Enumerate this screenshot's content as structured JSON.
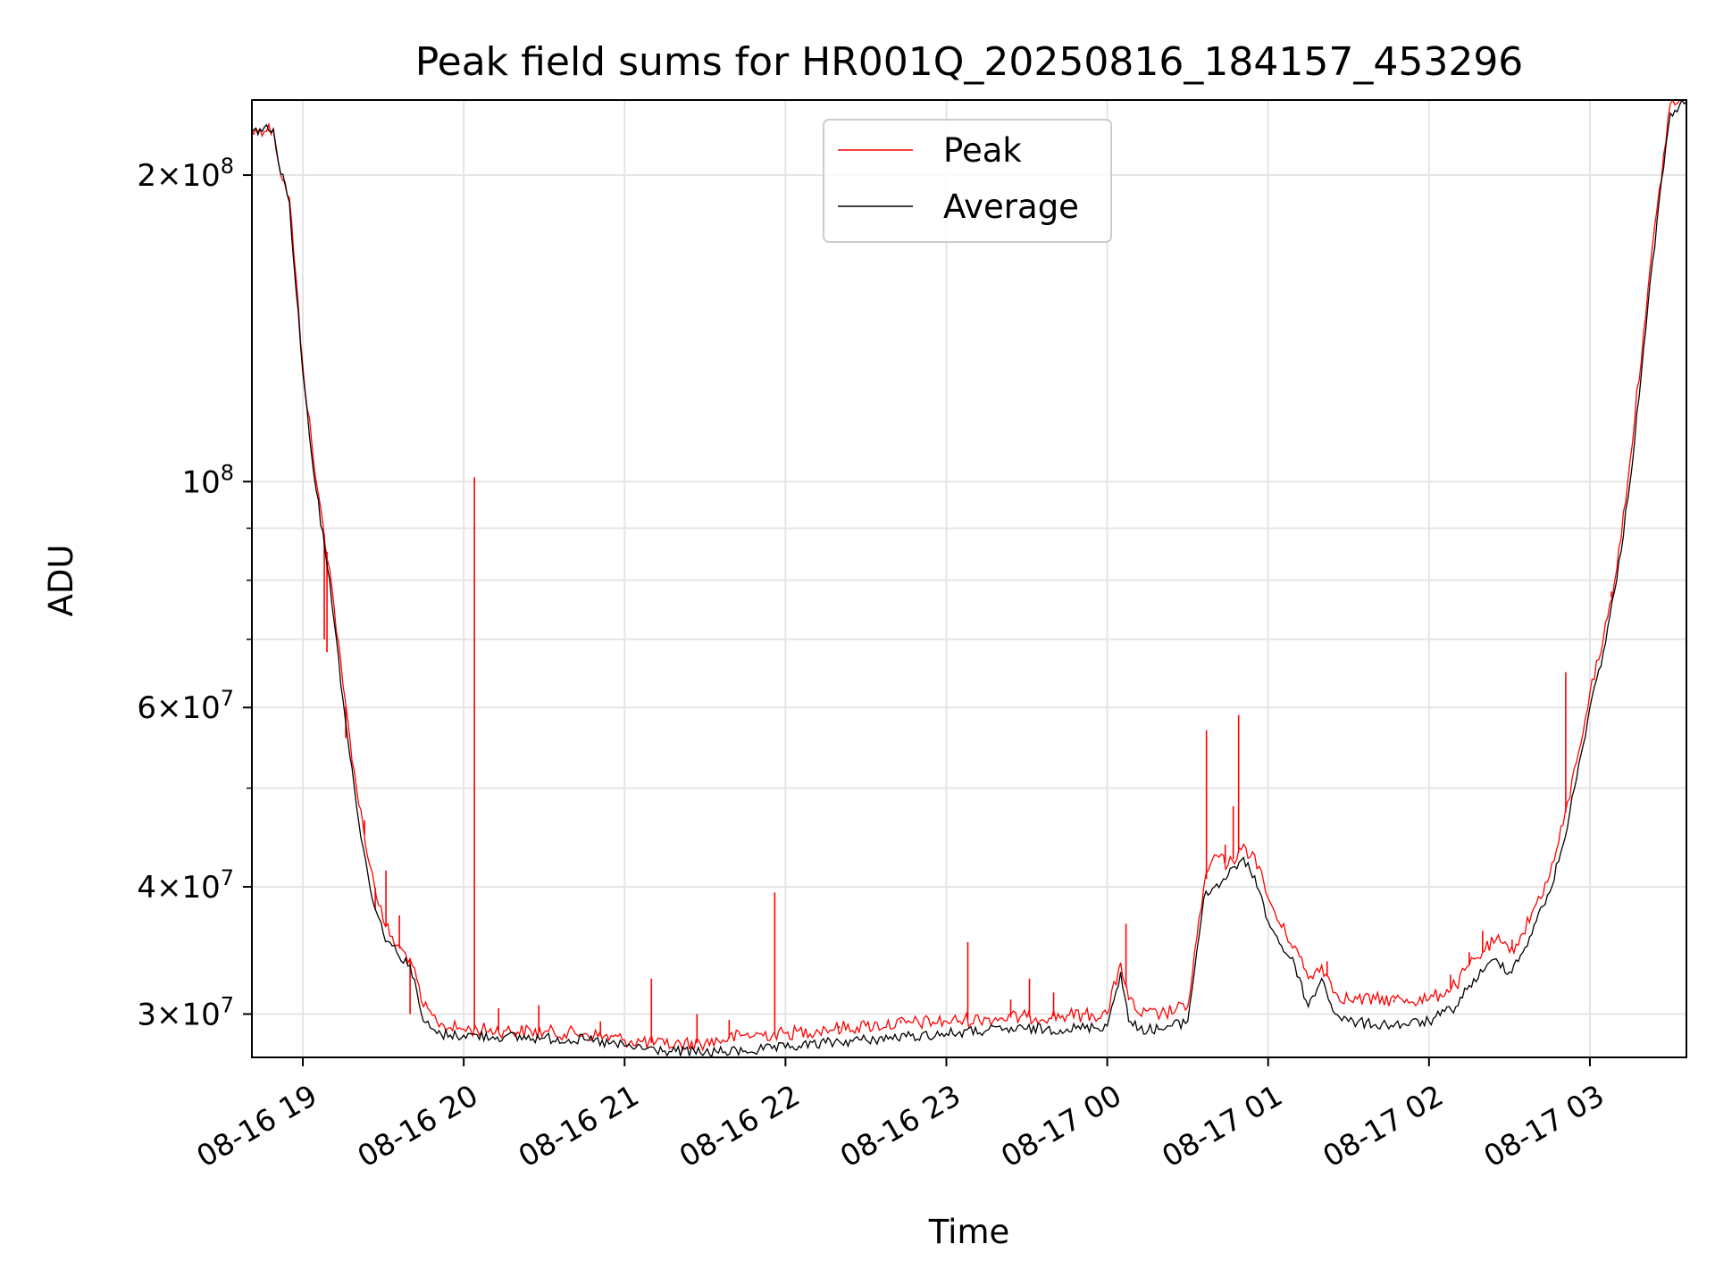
{
  "chart_data": {
    "type": "line",
    "title": "Peak field sums for HR001Q_20250816_184157_453296",
    "xlabel": "Time",
    "ylabel": "ADU",
    "yscale": "log",
    "grid": true,
    "legend": "upper-center",
    "xlim": [
      "2025-08-16 18:41",
      "2025-08-17 03:36"
    ],
    "ylim": [
      27200000,
      237000000
    ],
    "x_ticks": [
      "08-16 19",
      "08-16 20",
      "08-16 21",
      "08-16 22",
      "08-16 23",
      "08-17 00",
      "08-17 01",
      "08-17 02",
      "08-17 03"
    ],
    "y_ticks": [
      {
        "base": "2",
        "exp": "8",
        "value": 200000000
      },
      {
        "base": "",
        "exp": "8",
        "value": 100000000
      },
      {
        "base": "6",
        "exp": "7",
        "value": 60000000
      },
      {
        "base": "4",
        "exp": "7",
        "value": 40000000
      },
      {
        "base": "3",
        "exp": "7",
        "value": 30000000
      }
    ],
    "y_minor_ticks": [
      90000000,
      80000000,
      70000000,
      50000000
    ],
    "series": [
      {
        "name": "Peak",
        "color": "#ff0000",
        "x": [
          "2025-08-16 18:41",
          "2025-08-16 18:44",
          "2025-08-16 18:49",
          "2025-08-16 18:51",
          "2025-08-16 18:55",
          "2025-08-16 19:00",
          "2025-08-16 19:05",
          "2025-08-16 19:10",
          "2025-08-16 19:15",
          "2025-08-16 19:20",
          "2025-08-16 19:25",
          "2025-08-16 19:30",
          "2025-08-16 19:35",
          "2025-08-16 19:40",
          "2025-08-16 19:45",
          "2025-08-16 19:50",
          "2025-08-16 19:55",
          "2025-08-16 20:00",
          "2025-08-16 20:15",
          "2025-08-16 20:30",
          "2025-08-16 20:45",
          "2025-08-16 21:00",
          "2025-08-16 21:15",
          "2025-08-16 21:30",
          "2025-08-16 21:45",
          "2025-08-16 22:00",
          "2025-08-16 22:15",
          "2025-08-16 22:30",
          "2025-08-16 22:45",
          "2025-08-16 23:00",
          "2025-08-16 23:15",
          "2025-08-16 23:30",
          "2025-08-16 23:45",
          "2025-08-17 00:00",
          "2025-08-17 00:05",
          "2025-08-17 00:08",
          "2025-08-17 00:12",
          "2025-08-17 00:20",
          "2025-08-17 00:30",
          "2025-08-17 00:36",
          "2025-08-17 00:40",
          "2025-08-17 00:45",
          "2025-08-17 00:50",
          "2025-08-17 00:55",
          "2025-08-17 01:00",
          "2025-08-17 01:05",
          "2025-08-17 01:10",
          "2025-08-17 01:15",
          "2025-08-17 01:20",
          "2025-08-17 01:25",
          "2025-08-17 01:30",
          "2025-08-17 01:40",
          "2025-08-17 01:50",
          "2025-08-17 02:00",
          "2025-08-17 02:10",
          "2025-08-17 02:15",
          "2025-08-17 02:20",
          "2025-08-17 02:25",
          "2025-08-17 02:30",
          "2025-08-17 02:35",
          "2025-08-17 02:40",
          "2025-08-17 02:45",
          "2025-08-17 02:50",
          "2025-08-17 02:55",
          "2025-08-17 03:00",
          "2025-08-17 03:05",
          "2025-08-17 03:10",
          "2025-08-17 03:15",
          "2025-08-17 03:20",
          "2025-08-17 03:25",
          "2025-08-17 03:30",
          "2025-08-17 03:36"
        ],
        "y": [
          220000000,
          222000000,
          222000000,
          205000000,
          190000000,
          130000000,
          100000000,
          82000000,
          63000000,
          50000000,
          42000000,
          37000000,
          35000000,
          34000000,
          30500000,
          29500000,
          29100000,
          29000000,
          28900000,
          28800000,
          28700000,
          28300000,
          28000000,
          28100000,
          28600000,
          28700000,
          29000000,
          29200000,
          29400000,
          29500000,
          29700000,
          29800000,
          29900000,
          30000000,
          33700000,
          31000000,
          30000000,
          30000000,
          30500000,
          40000000,
          43000000,
          42000000,
          43500000,
          43000000,
          39000000,
          36500000,
          35000000,
          32500000,
          33500000,
          31500000,
          31000000,
          31000000,
          31000000,
          31000000,
          32000000,
          33500000,
          34500000,
          35500000,
          34500000,
          36000000,
          38500000,
          41000000,
          46000000,
          53000000,
          62000000,
          70000000,
          82000000,
          105000000,
          140000000,
          185000000,
          235000000,
          237000000
        ]
      },
      {
        "name": "Average",
        "color": "#000000",
        "x": [
          "2025-08-16 18:41",
          "2025-08-16 18:44",
          "2025-08-16 18:49",
          "2025-08-16 18:51",
          "2025-08-16 18:55",
          "2025-08-16 19:00",
          "2025-08-16 19:05",
          "2025-08-16 19:10",
          "2025-08-16 19:15",
          "2025-08-16 19:20",
          "2025-08-16 19:25",
          "2025-08-16 19:30",
          "2025-08-16 19:35",
          "2025-08-16 19:40",
          "2025-08-16 19:45",
          "2025-08-16 19:50",
          "2025-08-16 19:55",
          "2025-08-16 20:00",
          "2025-08-16 20:15",
          "2025-08-16 20:30",
          "2025-08-16 20:45",
          "2025-08-16 21:00",
          "2025-08-16 21:15",
          "2025-08-16 21:30",
          "2025-08-16 21:45",
          "2025-08-16 22:00",
          "2025-08-16 22:15",
          "2025-08-16 22:30",
          "2025-08-16 22:45",
          "2025-08-16 23:00",
          "2025-08-16 23:15",
          "2025-08-16 23:30",
          "2025-08-16 23:45",
          "2025-08-17 00:00",
          "2025-08-17 00:05",
          "2025-08-17 00:08",
          "2025-08-17 00:12",
          "2025-08-17 00:20",
          "2025-08-17 00:30",
          "2025-08-17 00:36",
          "2025-08-17 00:40",
          "2025-08-17 00:45",
          "2025-08-17 00:50",
          "2025-08-17 00:55",
          "2025-08-17 01:00",
          "2025-08-17 01:05",
          "2025-08-17 01:10",
          "2025-08-17 01:15",
          "2025-08-17 01:20",
          "2025-08-17 01:25",
          "2025-08-17 01:30",
          "2025-08-17 01:40",
          "2025-08-17 01:50",
          "2025-08-17 02:00",
          "2025-08-17 02:10",
          "2025-08-17 02:15",
          "2025-08-17 02:20",
          "2025-08-17 02:25",
          "2025-08-17 02:30",
          "2025-08-17 02:35",
          "2025-08-17 02:40",
          "2025-08-17 02:45",
          "2025-08-17 02:50",
          "2025-08-17 02:55",
          "2025-08-17 03:00",
          "2025-08-17 03:05",
          "2025-08-17 03:10",
          "2025-08-17 03:15",
          "2025-08-17 03:20",
          "2025-08-17 03:25",
          "2025-08-17 03:30",
          "2025-08-17 03:36"
        ],
        "y": [
          220000000,
          222000000,
          222000000,
          205000000,
          188000000,
          128000000,
          98000000,
          80000000,
          61000000,
          48000000,
          40000000,
          36000000,
          34500000,
          33500000,
          29500000,
          28700000,
          28600000,
          28600000,
          28500000,
          28400000,
          28300000,
          27900000,
          27600000,
          27500000,
          27600000,
          27800000,
          28100000,
          28300000,
          28500000,
          28700000,
          28900000,
          29000000,
          29000000,
          29200000,
          33000000,
          29500000,
          29000000,
          29000000,
          29500000,
          39000000,
          40000000,
          41000000,
          42500000,
          41000000,
          37000000,
          35000000,
          33500000,
          30500000,
          32500000,
          30000000,
          29500000,
          29300000,
          29300000,
          29500000,
          30500000,
          32000000,
          33000000,
          34000000,
          33000000,
          34500000,
          37000000,
          39500000,
          44000000,
          51000000,
          60000000,
          68000000,
          80000000,
          100000000,
          135000000,
          180000000,
          230000000,
          236000000
        ]
      }
    ],
    "spikes": {
      "x": [
        "2025-08-16 19:08",
        "2025-08-16 19:09",
        "2025-08-16 19:16",
        "2025-08-16 19:23",
        "2025-08-16 19:27",
        "2025-08-16 19:31",
        "2025-08-16 19:36",
        "2025-08-16 19:40",
        "2025-08-16 20:04",
        "2025-08-16 20:13",
        "2025-08-16 20:28",
        "2025-08-16 20:51",
        "2025-08-16 21:10",
        "2025-08-16 21:27",
        "2025-08-16 21:39",
        "2025-08-16 21:56",
        "2025-08-16 22:20",
        "2025-08-16 22:43",
        "2025-08-16 23:08",
        "2025-08-16 23:24",
        "2025-08-16 23:31",
        "2025-08-16 23:40",
        "2025-08-17 00:07",
        "2025-08-17 00:37",
        "2025-08-17 00:44",
        "2025-08-17 00:47",
        "2025-08-17 00:49",
        "2025-08-17 01:22",
        "2025-08-17 01:47",
        "2025-08-17 02:08",
        "2025-08-17 02:15",
        "2025-08-17 02:20",
        "2025-08-17 02:31",
        "2025-08-17 02:51",
        "2025-08-17 03:08"
      ],
      "y": [
        70000000,
        68000000,
        56000000,
        46500000,
        38000000,
        41500000,
        37500000,
        30000000,
        101000000,
        30400000,
        30600000,
        29500000,
        32500000,
        30000000,
        29600000,
        39500000,
        29200000,
        29600000,
        35300000,
        31000000,
        32500000,
        31500000,
        36800000,
        57000000,
        44000000,
        48000000,
        59000000,
        33800000,
        30800000,
        32800000,
        34500000,
        36200000,
        35500000,
        65000000,
        78000000
      ]
    }
  },
  "legend": {
    "peak_label": "Peak",
    "average_label": "Average"
  }
}
